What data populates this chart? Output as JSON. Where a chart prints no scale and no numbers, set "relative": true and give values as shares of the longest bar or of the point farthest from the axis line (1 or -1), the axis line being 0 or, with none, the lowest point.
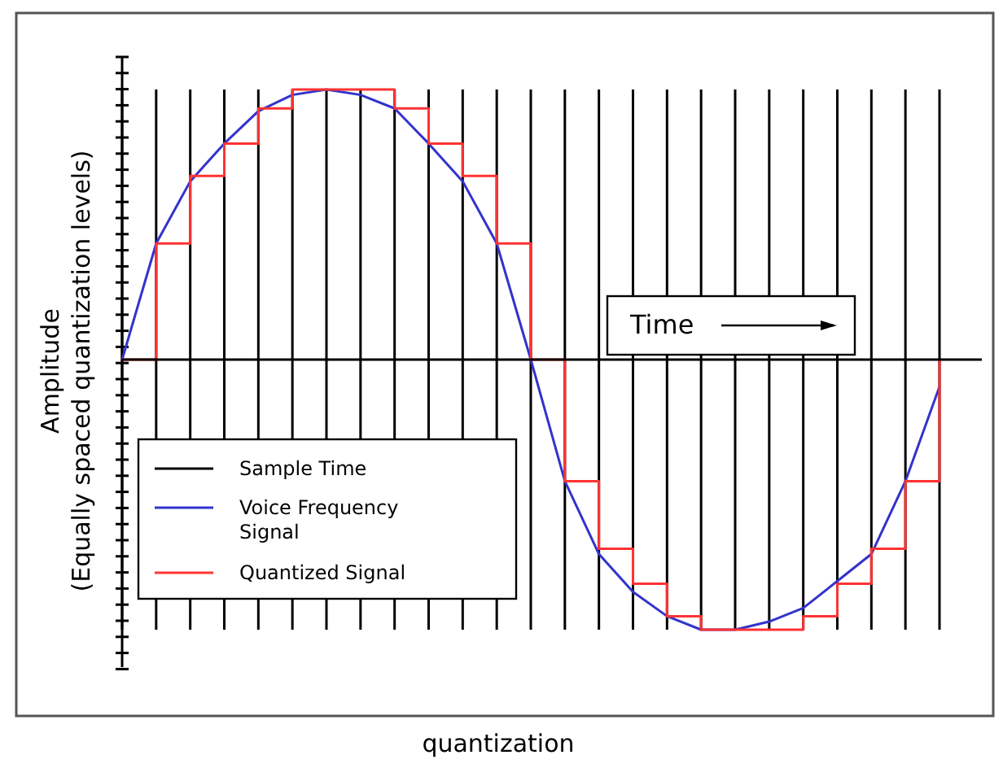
{
  "chart_data": {
    "type": "line",
    "relative": true,
    "xlabel": "quantization",
    "ylabel": "Amplitude\n(Equally spaced quantization levels)",
    "annotations": [
      "Time",
      "Sample Time"
    ],
    "legend": "bottom left",
    "grid": "x",
    "categories": [
      null,
      null,
      null,
      null,
      null,
      null,
      null,
      null,
      null,
      null,
      null,
      null,
      null,
      null,
      null,
      null,
      null,
      null,
      null,
      null,
      null,
      null,
      null,
      null,
      null
    ],
    "series": [
      {
        "name": "Voice Frequency\nSignal",
        "color": "#3333cc",
        "values": [
          0,
          0.43,
          0.66,
          0.8,
          0.92,
          0.98,
          1,
          0.98,
          0.93,
          0.8,
          0.66,
          0.43,
          0,
          -0.45,
          -0.72,
          -0.86,
          -0.95,
          -1,
          -1,
          -0.97,
          -0.92,
          -0.82,
          -0.72,
          -0.45,
          -0.1
        ]
      },
      {
        "name": "Quantized Signal",
        "type": "step",
        "color": "#ff3333",
        "values": [
          0,
          0.43,
          0.68,
          0.8,
          0.93,
          1,
          1,
          1,
          0.93,
          0.8,
          0.68,
          0.43,
          0,
          -0.45,
          -0.7,
          -0.83,
          -0.95,
          -1,
          -1,
          -1,
          -0.95,
          -0.83,
          -0.7,
          -0.45,
          0
        ]
      }
    ]
  }
}
